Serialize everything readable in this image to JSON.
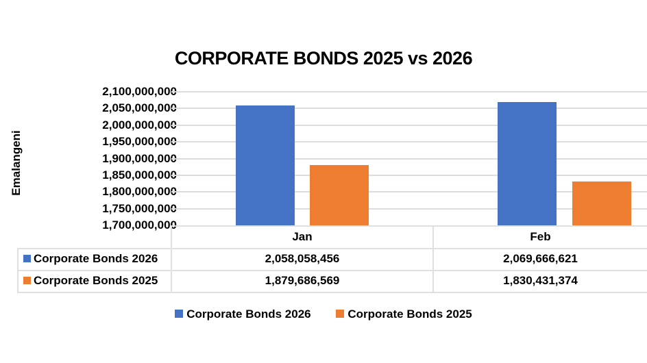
{
  "chart_data": {
    "type": "bar",
    "title": "CORPORATE BONDS 2025 vs 2026",
    "xlabel": "",
    "ylabel": "Emalangeni",
    "categories": [
      "Jan",
      "Feb"
    ],
    "series": [
      {
        "name": "Corporate Bonds 2026",
        "color": "#4472C4",
        "values": [
          2058058456,
          2069666621
        ],
        "labels": [
          "2,058,058,456",
          "2,069,666,621"
        ]
      },
      {
        "name": "Corporate Bonds 2025",
        "color": "#ED7D31",
        "values": [
          1879686569,
          1830431374
        ],
        "labels": [
          "1,879,686,569",
          "1,830,431,374"
        ]
      }
    ],
    "ylim": [
      1700000000,
      2100000000
    ],
    "yticks": [
      "2,100,000,000",
      "2,050,000,000",
      "2,000,000,000",
      "1,950,000,000",
      "1,900,000,000",
      "1,850,000,000",
      "1,800,000,000",
      "1,750,000,000",
      "1,700,000,000"
    ],
    "grid": true,
    "data_table": true,
    "legend_position": "bottom"
  }
}
